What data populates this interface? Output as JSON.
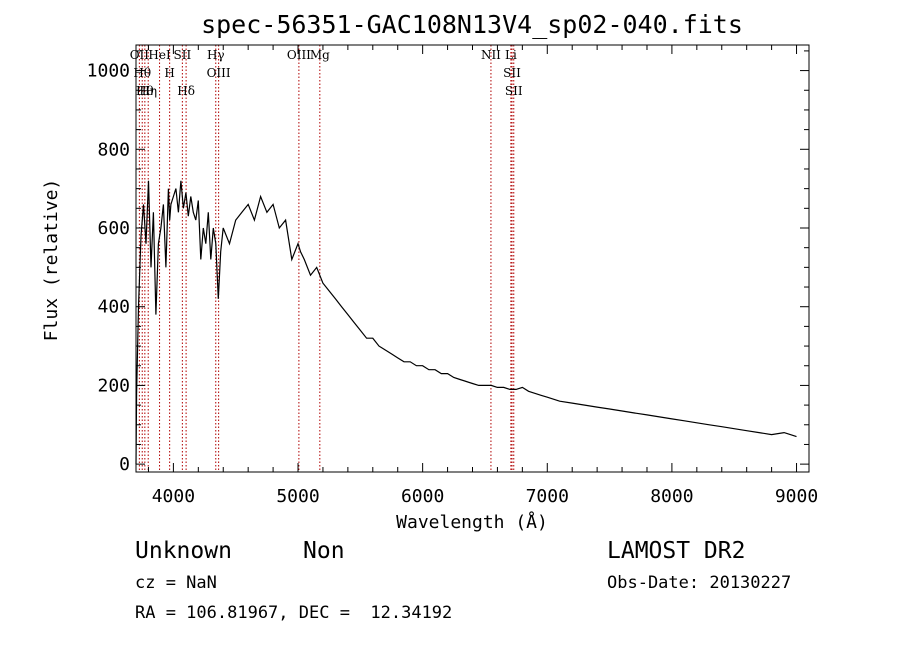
{
  "chart_data": {
    "type": "line",
    "title": "spec-56351-GAC108N13V4_sp02-040.fits",
    "xlabel": "Wavelength (Å)",
    "ylabel": "Flux (relative)",
    "xlim": [
      3700,
      9100
    ],
    "ylim": [
      -20,
      1065
    ],
    "xticks": [
      4000,
      5000,
      6000,
      7000,
      8000,
      9000
    ],
    "yticks": [
      0,
      200,
      400,
      600,
      800,
      1000
    ],
    "xtick_labels": [
      "4000",
      "5000",
      "6000",
      "7000",
      "8000",
      "9000"
    ],
    "ytick_labels": [
      "0",
      "200",
      "400",
      "600",
      "800",
      "1000"
    ],
    "grid": false,
    "series": [
      {
        "color": "#000000",
        "x": [
          3700,
          3705,
          3720,
          3740,
          3760,
          3780,
          3800,
          3820,
          3840,
          3860,
          3880,
          3900,
          3920,
          3940,
          3960,
          3970,
          3980,
          4000,
          4020,
          4040,
          4060,
          4080,
          4100,
          4120,
          4140,
          4160,
          4180,
          4200,
          4220,
          4240,
          4260,
          4280,
          4300,
          4320,
          4340,
          4360,
          4380,
          4400,
          4450,
          4500,
          4550,
          4600,
          4650,
          4700,
          4750,
          4800,
          4850,
          4900,
          4950,
          5000,
          5020,
          5050,
          5100,
          5150,
          5200,
          5250,
          5300,
          5350,
          5400,
          5450,
          5500,
          5550,
          5600,
          5650,
          5700,
          5750,
          5800,
          5850,
          5900,
          5950,
          6000,
          6050,
          6100,
          6150,
          6200,
          6250,
          6300,
          6350,
          6400,
          6450,
          6500,
          6550,
          6600,
          6650,
          6700,
          6750,
          6800,
          6850,
          6900,
          6950,
          7000,
          7100,
          7200,
          7300,
          7400,
          7500,
          7600,
          7700,
          7800,
          7900,
          8000,
          8100,
          8200,
          8300,
          8400,
          8500,
          8600,
          8700,
          8800,
          8900,
          8950,
          9000
        ],
        "y": [
          0,
          180,
          400,
          580,
          660,
          560,
          720,
          500,
          640,
          380,
          560,
          600,
          660,
          500,
          700,
          620,
          660,
          680,
          700,
          640,
          720,
          650,
          690,
          630,
          680,
          640,
          620,
          670,
          520,
          600,
          560,
          640,
          520,
          600,
          560,
          420,
          540,
          600,
          560,
          620,
          640,
          660,
          620,
          680,
          640,
          660,
          600,
          620,
          520,
          560,
          540,
          520,
          480,
          500,
          460,
          440,
          420,
          400,
          380,
          360,
          340,
          320,
          320,
          300,
          290,
          280,
          270,
          260,
          260,
          250,
          250,
          240,
          240,
          230,
          230,
          220,
          215,
          210,
          205,
          200,
          200,
          200,
          195,
          195,
          190,
          190,
          195,
          185,
          180,
          175,
          170,
          160,
          155,
          150,
          145,
          140,
          135,
          130,
          125,
          120,
          115,
          110,
          105,
          100,
          95,
          90,
          85,
          80,
          75,
          80,
          75,
          70
        ]
      }
    ],
    "lines": [
      {
        "wl": 3727,
        "label": "OII"
      },
      {
        "wl": 3750,
        "label": "Hθ"
      },
      {
        "wl": 3771,
        "label": "Hθ"
      },
      {
        "wl": 3798,
        "label": "Hη"
      },
      {
        "wl": 3889,
        "label": "HeI"
      },
      {
        "wl": 3970,
        "label": "H"
      },
      {
        "wl": 4072,
        "label": "SII"
      },
      {
        "wl": 4102,
        "label": "Hδ"
      },
      {
        "wl": 4340,
        "label": "Hγ"
      },
      {
        "wl": 4363,
        "label": "OIII"
      },
      {
        "wl": 5007,
        "label": "OIII"
      },
      {
        "wl": 5175,
        "label": "Mg"
      },
      {
        "wl": 6548,
        "label": "NII"
      },
      {
        "wl": 6708,
        "label": "Li"
      },
      {
        "wl": 6717,
        "label": "SII"
      },
      {
        "wl": 6731,
        "label": "SII"
      }
    ]
  },
  "info": {
    "class": "Unknown",
    "subclass": "Non",
    "survey": "LAMOST DR2",
    "cz": "cz = NaN",
    "obsdate": "Obs-Date: 20130227",
    "radec": "RA = 106.81967, DEC =  12.34192"
  }
}
